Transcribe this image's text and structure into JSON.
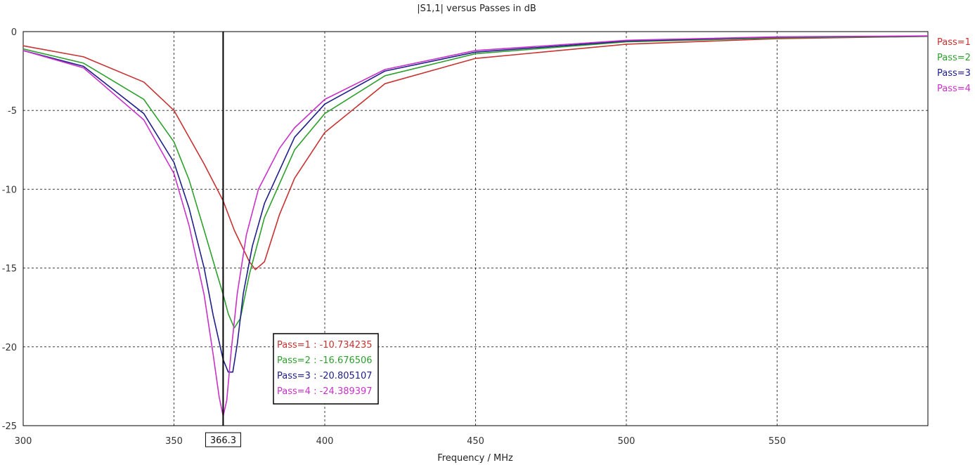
{
  "chart_data": {
    "type": "line",
    "title": "|S1,1| versus Passes in dB",
    "xlabel": "Frequency / MHz",
    "ylabel": "",
    "xlim": [
      300,
      600
    ],
    "ylim": [
      -25,
      0
    ],
    "x_ticks": [
      300,
      350,
      400,
      450,
      500,
      550
    ],
    "x_tick_labels": [
      "300",
      "350",
      "400",
      "450",
      "500",
      "550"
    ],
    "y_ticks": [
      0,
      -5,
      -10,
      -15,
      -20,
      -25
    ],
    "y_tick_labels": [
      "0",
      "-5",
      "-10",
      "-15",
      "-20",
      "-25"
    ],
    "grid": true,
    "legend_position": "right",
    "series": [
      {
        "name": "Pass=1",
        "color": "#c83232",
        "x": [
          300,
          320,
          340,
          350,
          360,
          366.3,
          370,
          375,
          377,
          380,
          385,
          390,
          400,
          420,
          450,
          500,
          550,
          600
        ],
        "y": [
          -0.9,
          -1.6,
          -3.2,
          -5.0,
          -8.4,
          -10.734235,
          -12.6,
          -14.6,
          -15.1,
          -14.6,
          -11.6,
          -9.3,
          -6.4,
          -3.3,
          -1.7,
          -0.8,
          -0.45,
          -0.3
        ]
      },
      {
        "name": "Pass=2",
        "color": "#2ea02e",
        "x": [
          300,
          320,
          340,
          350,
          355,
          360,
          364,
          366.3,
          368,
          370,
          372,
          375,
          380,
          390,
          400,
          420,
          450,
          500,
          550,
          600
        ],
        "y": [
          -1.1,
          -2.0,
          -4.3,
          -7.0,
          -9.4,
          -12.6,
          -15.2,
          -16.676506,
          -17.9,
          -18.8,
          -18.2,
          -15.4,
          -11.8,
          -7.5,
          -5.2,
          -2.8,
          -1.4,
          -0.65,
          -0.4,
          -0.3
        ]
      },
      {
        "name": "Pass=3",
        "color": "#1f1f8a",
        "x": [
          300,
          320,
          340,
          350,
          355,
          360,
          363,
          366.3,
          368,
          369.5,
          371,
          373,
          376,
          380,
          390,
          400,
          420,
          450,
          500,
          550,
          600
        ],
        "y": [
          -1.2,
          -2.2,
          -5.2,
          -8.3,
          -11.2,
          -15.0,
          -18.0,
          -20.805107,
          -21.6,
          -21.6,
          -19.8,
          -16.6,
          -13.6,
          -10.9,
          -6.7,
          -4.6,
          -2.5,
          -1.3,
          -0.6,
          -0.35,
          -0.28
        ]
      },
      {
        "name": "Pass=4",
        "color": "#c832c8",
        "x": [
          300,
          320,
          340,
          350,
          355,
          360,
          363,
          365,
          366.3,
          367.5,
          369,
          371,
          374,
          378,
          385,
          390,
          400,
          420,
          450,
          500,
          550,
          600
        ],
        "y": [
          -1.2,
          -2.3,
          -5.6,
          -9.0,
          -12.3,
          -16.7,
          -20.5,
          -23.2,
          -24.389397,
          -23.4,
          -20.2,
          -16.6,
          -12.9,
          -10.0,
          -7.4,
          -6.1,
          -4.3,
          -2.4,
          -1.2,
          -0.55,
          -0.33,
          -0.27
        ]
      }
    ],
    "marker": {
      "x": 366.3,
      "label": "366.3",
      "readout": [
        "Pass=1 : -10.734235",
        "Pass=2 : -16.676506",
        "Pass=3 : -20.805107",
        "Pass=4 : -24.389397"
      ]
    }
  }
}
